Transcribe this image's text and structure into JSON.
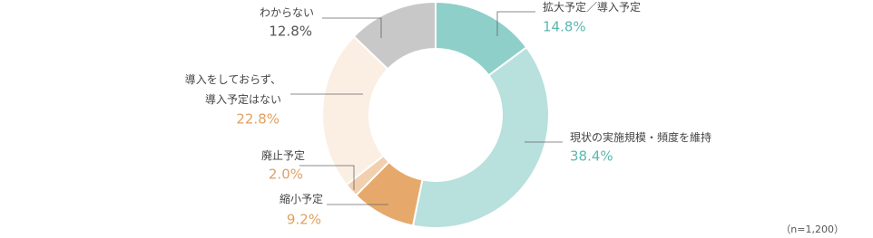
{
  "chart_data": {
    "type": "pie",
    "categories": [
      "拡大予定／導入予定",
      "現状の実施規模・頻度を維持",
      "縮小予定",
      "廃止予定",
      "導入をしておらず、\n導入予定はない",
      "わからない"
    ],
    "values": [
      14.8,
      38.4,
      9.2,
      2.0,
      22.8,
      12.8
    ],
    "value_labels": [
      "14.8%",
      "38.4%",
      "9.2%",
      "2.0%",
      "22.8%",
      "12.8%"
    ],
    "colors": [
      "#8ecfc9",
      "#b8e0dd",
      "#e6a96b",
      "#f2cfae",
      "#fbeee3",
      "#c8c8c8"
    ],
    "label_colors": [
      "#5bb8b0",
      "#5bb8b0",
      "#e0a060",
      "#e0a060",
      "#e0a060",
      "#555555"
    ],
    "note": "（n=1,200）"
  }
}
